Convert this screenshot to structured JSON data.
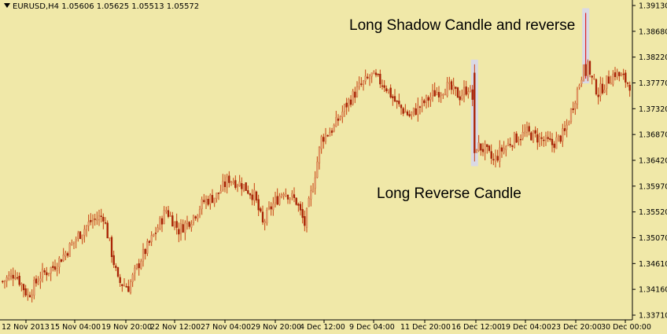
{
  "header": {
    "symbol": "EURUSD,H4",
    "ohlc": "1.05606 1.05625 1.05513 1.05572"
  },
  "annotations": {
    "top": "Long Shadow Candle and reverse",
    "bottom": "Long Reverse Candle"
  },
  "colors": {
    "background": "#f0e8a8",
    "bull_candle": "#e8a070",
    "bear_candle": "#b02000",
    "wick": "#c84010",
    "highlight": "#d8d8e8",
    "axis": "#000000"
  },
  "chart_data": {
    "type": "candlestick",
    "title": "EURUSD,H4",
    "ylim": [
      1.3371,
      1.3913
    ],
    "y_ticks": [
      "1.39130",
      "1.38680",
      "1.38220",
      "1.37770",
      "1.37320",
      "1.36870",
      "1.36420",
      "1.35970",
      "1.35520",
      "1.35070",
      "1.34610",
      "1.34160",
      "1.33710"
    ],
    "x_ticks": [
      "12 Nov 2013",
      "15 Nov 04:00",
      "19 Nov 20:00",
      "22 Nov 12:00",
      "27 Nov 04:00",
      "29 Nov 20:00",
      "4 Dec 12:00",
      "9 Dec 04:00",
      "11 Dec 20:00",
      "16 Dec 12:00",
      "19 Dec 04:00",
      "23 Dec 20:00",
      "30 Dec 00:00"
    ],
    "highlighted_candles": [
      "long-reverse-candle",
      "long-shadow-candle"
    ],
    "close_path": [
      [
        0,
        1.343
      ],
      [
        6,
        1.3445
      ],
      [
        12,
        1.3405
      ],
      [
        18,
        1.344
      ],
      [
        24,
        1.3455
      ],
      [
        30,
        1.348
      ],
      [
        36,
        1.351
      ],
      [
        42,
        1.3535
      ],
      [
        48,
        1.3545
      ],
      [
        52,
        1.348
      ],
      [
        55,
        1.343
      ],
      [
        60,
        1.342
      ],
      [
        66,
        1.347
      ],
      [
        72,
        1.351
      ],
      [
        78,
        1.3555
      ],
      [
        84,
        1.352
      ],
      [
        90,
        1.354
      ],
      [
        96,
        1.357
      ],
      [
        102,
        1.358
      ],
      [
        108,
        1.361
      ],
      [
        114,
        1.36
      ],
      [
        120,
        1.358
      ],
      [
        124,
        1.353
      ],
      [
        128,
        1.356
      ],
      [
        134,
        1.359
      ],
      [
        140,
        1.357
      ],
      [
        144,
        1.353
      ],
      [
        148,
        1.36
      ],
      [
        152,
        1.368
      ],
      [
        158,
        1.37
      ],
      [
        164,
        1.374
      ],
      [
        170,
        1.377
      ],
      [
        176,
        1.379
      ],
      [
        182,
        1.3775
      ],
      [
        188,
        1.374
      ],
      [
        194,
        1.372
      ],
      [
        200,
        1.374
      ],
      [
        206,
        1.376
      ],
      [
        212,
        1.377
      ],
      [
        218,
        1.3755
      ],
      [
        222,
        1.377
      ],
      [
        224,
        1.375
      ],
      [
        225,
        1.367
      ],
      [
        230,
        1.366
      ],
      [
        234,
        1.364
      ],
      [
        238,
        1.366
      ],
      [
        244,
        1.368
      ],
      [
        250,
        1.369
      ],
      [
        256,
        1.368
      ],
      [
        262,
        1.367
      ],
      [
        268,
        1.369
      ],
      [
        272,
        1.374
      ],
      [
        276,
        1.379
      ],
      [
        278,
        1.385
      ],
      [
        280,
        1.379
      ],
      [
        284,
        1.376
      ],
      [
        288,
        1.378
      ],
      [
        292,
        1.3795
      ],
      [
        296,
        1.3785
      ],
      [
        299,
        1.3775
      ]
    ]
  }
}
